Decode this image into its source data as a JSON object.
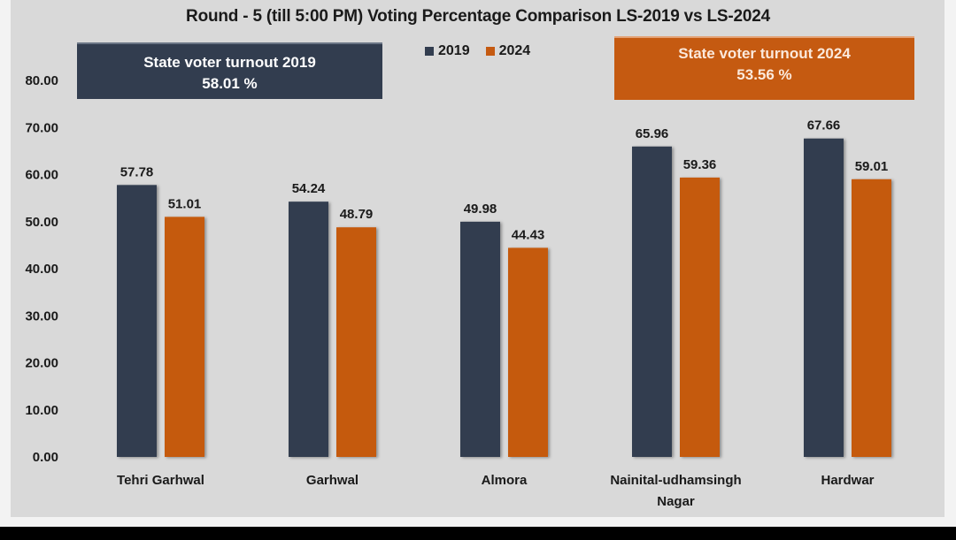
{
  "chart_data": {
    "type": "bar",
    "title": "Round - 5 (till 5:00 PM) Voting Percentage Comparison LS-2019 vs LS-2024",
    "xlabel": "",
    "ylabel": "",
    "ylim": [
      0,
      80
    ],
    "yticks": [
      "0.00",
      "10.00",
      "20.00",
      "30.00",
      "40.00",
      "50.00",
      "60.00",
      "70.00",
      "80.00"
    ],
    "grid": false,
    "legend_position": "top-center",
    "categories": [
      [
        "Tehri Garhwal"
      ],
      [
        "Garhwal"
      ],
      [
        "Almora"
      ],
      [
        "Nainital-udhamsingh",
        "Nagar"
      ],
      [
        "Hardwar"
      ]
    ],
    "series": [
      {
        "name": "2019",
        "color": "#323d4f",
        "values": [
          57.78,
          54.24,
          49.98,
          65.96,
          67.66
        ],
        "labels": [
          "57.78",
          "54.24",
          "49.98",
          "65.96",
          "67.66"
        ]
      },
      {
        "name": "2024",
        "color": "#c55a11",
        "values": [
          51.01,
          48.79,
          44.43,
          59.36,
          59.01
        ],
        "labels": [
          "51.01",
          "48.79",
          "44.43",
          "59.36",
          "59.01"
        ]
      }
    ],
    "annotations": [
      {
        "text": "State voter turnout 2019",
        "value": "58.01 %"
      },
      {
        "text": "State voter turnout 2024",
        "value": "53.56  %"
      }
    ]
  },
  "legend": {
    "items": [
      {
        "label": "2019"
      },
      {
        "label": "2024"
      }
    ]
  },
  "boxes": {
    "turnout_2019": {
      "title": "State voter turnout 2019",
      "value": "58.01 %"
    },
    "turnout_2024": {
      "title": "State voter turnout 2024",
      "value": "53.56  %"
    }
  }
}
